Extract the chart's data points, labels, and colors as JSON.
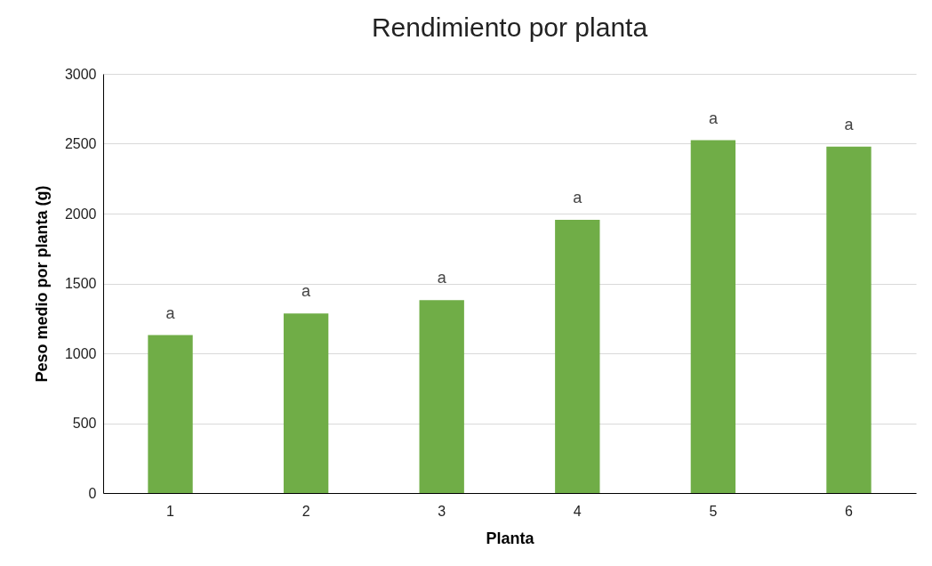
{
  "chart_data": {
    "type": "bar",
    "title": "Rendimiento  por planta",
    "xlabel": "Planta",
    "ylabel": "Peso medio por planta (g)",
    "categories": [
      "1",
      "2",
      "3",
      "4",
      "5",
      "6"
    ],
    "values": [
      1130,
      1285,
      1380,
      1955,
      2525,
      2480
    ],
    "color": "#70ad47",
    "ylim": [
      0,
      3000
    ],
    "yticks": [
      0,
      500,
      1000,
      1500,
      2000,
      2500,
      3000
    ],
    "grid": "y",
    "annotations": [
      {
        "text": "a",
        "x": "1",
        "y": 1130
      },
      {
        "text": "a",
        "x": "2",
        "y": 1285
      },
      {
        "text": "a",
        "x": "3",
        "y": 1380
      },
      {
        "text": "a",
        "x": "4",
        "y": 1955
      },
      {
        "text": "a",
        "x": "5",
        "y": 2525
      },
      {
        "text": "a",
        "x": "6",
        "y": 2480
      }
    ]
  }
}
